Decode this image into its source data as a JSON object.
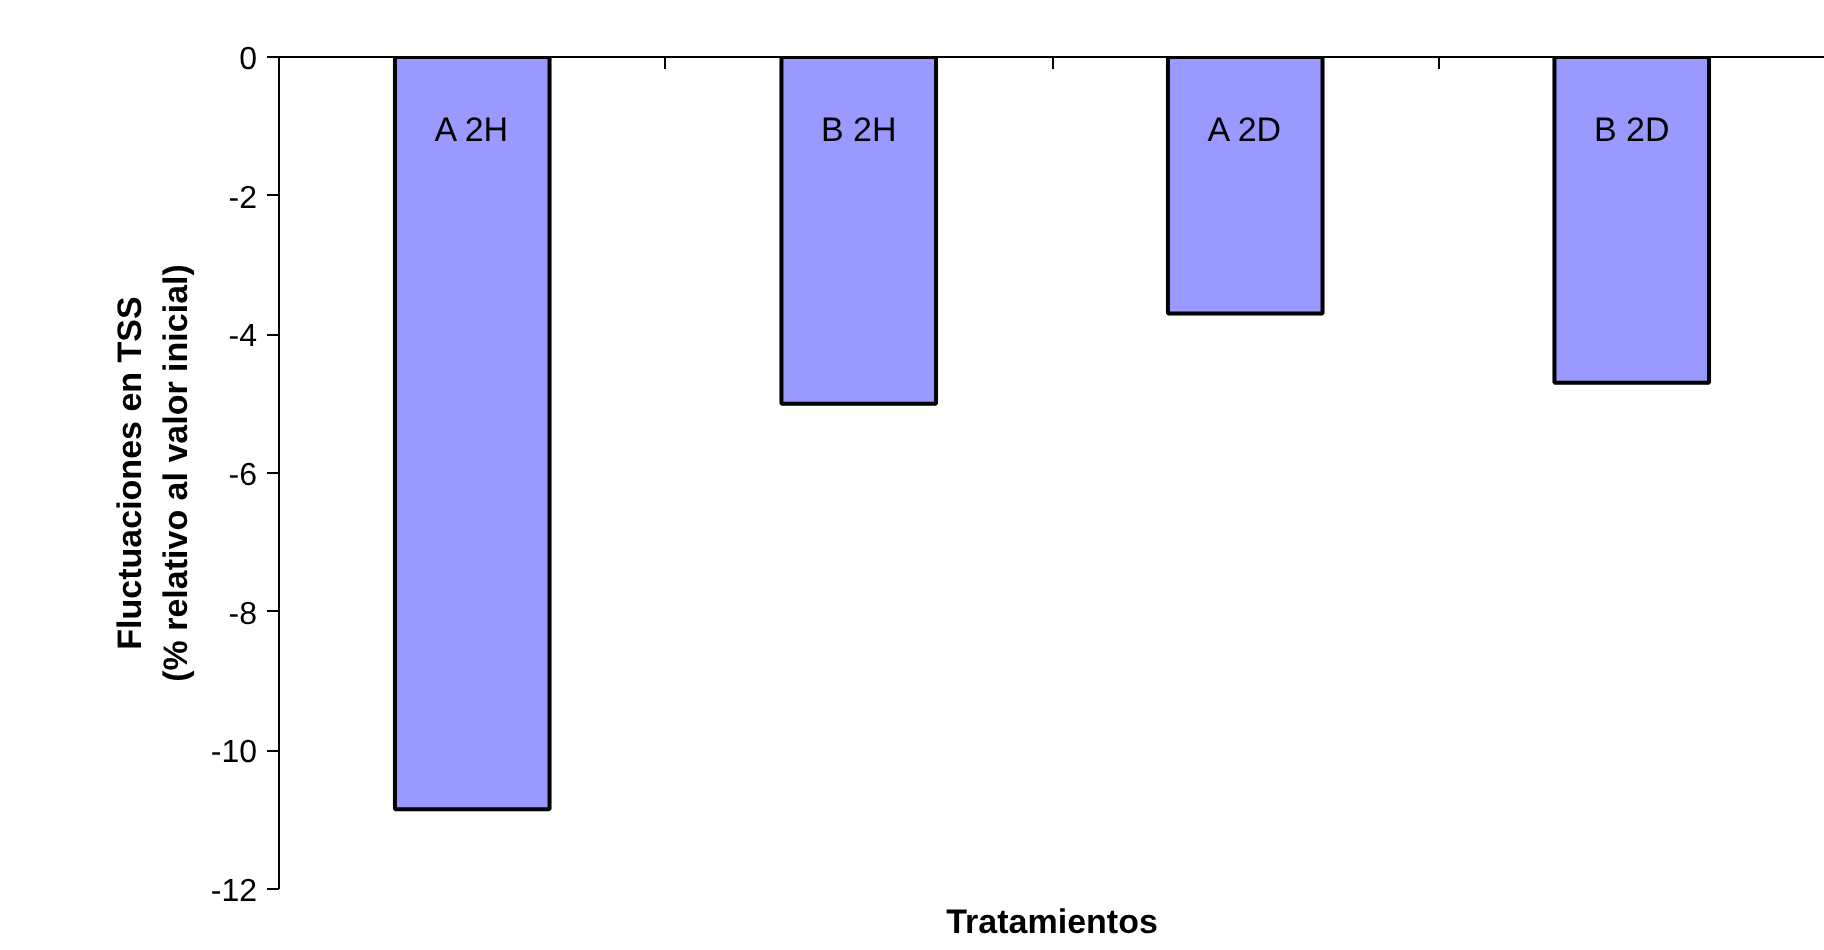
{
  "chart_data": {
    "type": "bar",
    "xlabel": "Tratamientos",
    "ylabel": "Fluctuaciones en TSS\n(% relativo al valor inicial)",
    "categories": [
      "A 2H",
      "B 2H",
      "A 2D",
      "B 2D"
    ],
    "values": [
      -10.85,
      -5.0,
      -3.7,
      -4.7
    ],
    "color": "#9999ff",
    "ylim": [
      -12,
      0
    ],
    "yticks": [
      -12,
      -10,
      -8,
      -6,
      -4,
      -2,
      0
    ],
    "grid": false
  }
}
